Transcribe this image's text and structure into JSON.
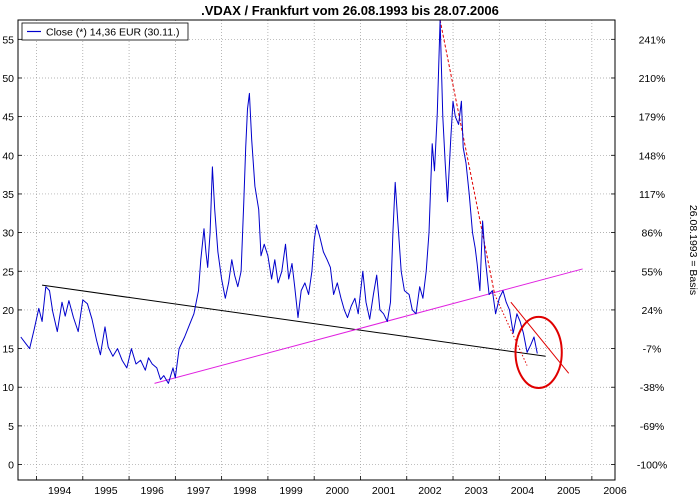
{
  "chart_data": {
    "type": "line",
    "title": ".VDAX / Frankfurt vom 26.08.1993 bis 28.07.2006",
    "legend": {
      "label": "Close (*) 14,36 EUR (30.11.)",
      "placement": "top-left"
    },
    "right_axis_label": "26.08.1993 = Basis",
    "x_ticks": [
      "1994",
      "1995",
      "1996",
      "1997",
      "1998",
      "1999",
      "2000",
      "2001",
      "2002",
      "2003",
      "2004",
      "2005",
      "2006"
    ],
    "y_ticks": [
      "0",
      "5",
      "10",
      "15",
      "20",
      "25",
      "30",
      "35",
      "40",
      "45",
      "50",
      "55"
    ],
    "right_ticks": [
      "-100%",
      "-69%",
      "-38%",
      "-7%",
      "24%",
      "55%",
      "86%",
      "117%",
      "148%",
      "179%",
      "210%",
      "241%"
    ],
    "xlim": [
      1993.6,
      2006.5
    ],
    "ylim": [
      -2.0,
      57.5
    ],
    "grid": "both-dotted",
    "colors": {
      "series": "#0000cc",
      "trend_black": "#000000",
      "trend_magenta": "#e020e0",
      "trend_red": "#e00000",
      "ellipse": "#e00000"
    },
    "series": [
      {
        "name": "Close (*) 14,36 EUR (30.11.)",
        "points": [
          [
            1993.66,
            16.5
          ],
          [
            1993.75,
            15.8
          ],
          [
            1993.85,
            15.0
          ],
          [
            1993.95,
            17.5
          ],
          [
            1994.05,
            20.2
          ],
          [
            1994.12,
            18.5
          ],
          [
            1994.2,
            23.0
          ],
          [
            1994.28,
            22.5
          ],
          [
            1994.35,
            19.8
          ],
          [
            1994.45,
            17.2
          ],
          [
            1994.55,
            21.0
          ],
          [
            1994.62,
            19.2
          ],
          [
            1994.7,
            21.2
          ],
          [
            1994.8,
            19.0
          ],
          [
            1994.9,
            17.2
          ],
          [
            1995.0,
            21.3
          ],
          [
            1995.1,
            20.8
          ],
          [
            1995.2,
            18.8
          ],
          [
            1995.3,
            16.0
          ],
          [
            1995.38,
            14.2
          ],
          [
            1995.48,
            17.8
          ],
          [
            1995.55,
            15.2
          ],
          [
            1995.65,
            14.0
          ],
          [
            1995.75,
            15.0
          ],
          [
            1995.85,
            13.5
          ],
          [
            1995.95,
            12.5
          ],
          [
            1996.05,
            15.0
          ],
          [
            1996.15,
            13.0
          ],
          [
            1996.25,
            13.5
          ],
          [
            1996.35,
            12.2
          ],
          [
            1996.42,
            13.8
          ],
          [
            1996.5,
            13.0
          ],
          [
            1996.6,
            12.5
          ],
          [
            1996.68,
            11.0
          ],
          [
            1996.75,
            11.5
          ],
          [
            1996.85,
            10.5
          ],
          [
            1996.95,
            12.5
          ],
          [
            1997.0,
            11.2
          ],
          [
            1997.08,
            15.0
          ],
          [
            1997.2,
            16.5
          ],
          [
            1997.3,
            18.0
          ],
          [
            1997.4,
            19.5
          ],
          [
            1997.5,
            22.5
          ],
          [
            1997.55,
            26.5
          ],
          [
            1997.62,
            30.5
          ],
          [
            1997.66,
            27.5
          ],
          [
            1997.7,
            25.5
          ],
          [
            1997.75,
            30.0
          ],
          [
            1997.8,
            38.5
          ],
          [
            1997.85,
            33.0
          ],
          [
            1997.92,
            27.5
          ],
          [
            1998.0,
            24.0
          ],
          [
            1998.08,
            21.5
          ],
          [
            1998.15,
            23.5
          ],
          [
            1998.22,
            26.5
          ],
          [
            1998.28,
            24.5
          ],
          [
            1998.35,
            23.0
          ],
          [
            1998.42,
            25.0
          ],
          [
            1998.48,
            34.0
          ],
          [
            1998.52,
            41.0
          ],
          [
            1998.56,
            46.0
          ],
          [
            1998.6,
            48.0
          ],
          [
            1998.65,
            42.0
          ],
          [
            1998.72,
            36.0
          ],
          [
            1998.8,
            33.0
          ],
          [
            1998.85,
            27.0
          ],
          [
            1998.92,
            28.5
          ],
          [
            1999.0,
            27.0
          ],
          [
            1999.08,
            24.0
          ],
          [
            1999.15,
            26.5
          ],
          [
            1999.22,
            23.5
          ],
          [
            1999.3,
            25.0
          ],
          [
            1999.38,
            28.5
          ],
          [
            1999.45,
            24.0
          ],
          [
            1999.52,
            26.0
          ],
          [
            1999.58,
            23.0
          ],
          [
            1999.65,
            19.0
          ],
          [
            1999.72,
            22.5
          ],
          [
            1999.8,
            23.5
          ],
          [
            1999.88,
            22.0
          ],
          [
            1999.95,
            25.0
          ],
          [
            2000.0,
            29.0
          ],
          [
            2000.05,
            31.0
          ],
          [
            2000.12,
            29.5
          ],
          [
            2000.2,
            27.5
          ],
          [
            2000.28,
            26.5
          ],
          [
            2000.35,
            25.5
          ],
          [
            2000.42,
            22.0
          ],
          [
            2000.5,
            23.5
          ],
          [
            2000.58,
            21.5
          ],
          [
            2000.65,
            20.0
          ],
          [
            2000.72,
            19.0
          ],
          [
            2000.8,
            20.5
          ],
          [
            2000.88,
            21.5
          ],
          [
            2000.95,
            19.5
          ],
          [
            2001.05,
            25.0
          ],
          [
            2001.12,
            21.0
          ],
          [
            2001.2,
            18.8
          ],
          [
            2001.28,
            22.0
          ],
          [
            2001.35,
            24.5
          ],
          [
            2001.42,
            20.0
          ],
          [
            2001.5,
            19.5
          ],
          [
            2001.58,
            18.5
          ],
          [
            2001.65,
            21.0
          ],
          [
            2001.7,
            30.0
          ],
          [
            2001.75,
            36.5
          ],
          [
            2001.8,
            32.0
          ],
          [
            2001.88,
            25.0
          ],
          [
            2001.95,
            22.5
          ],
          [
            2002.05,
            22.0
          ],
          [
            2002.12,
            20.0
          ],
          [
            2002.2,
            19.5
          ],
          [
            2002.28,
            23.0
          ],
          [
            2002.35,
            21.5
          ],
          [
            2002.42,
            25.0
          ],
          [
            2002.48,
            30.0
          ],
          [
            2002.55,
            41.5
          ],
          [
            2002.6,
            38.0
          ],
          [
            2002.66,
            45.5
          ],
          [
            2002.72,
            57.5
          ],
          [
            2002.78,
            45.0
          ],
          [
            2002.83,
            39.0
          ],
          [
            2002.88,
            34.0
          ],
          [
            2002.95,
            42.0
          ],
          [
            2003.0,
            47.0
          ],
          [
            2003.05,
            45.0
          ],
          [
            2003.12,
            44.0
          ],
          [
            2003.18,
            47.0
          ],
          [
            2003.22,
            41.0
          ],
          [
            2003.28,
            39.0
          ],
          [
            2003.35,
            35.0
          ],
          [
            2003.42,
            30.0
          ],
          [
            2003.48,
            28.0
          ],
          [
            2003.52,
            26.0
          ],
          [
            2003.58,
            22.5
          ],
          [
            2003.64,
            31.5
          ],
          [
            2003.7,
            26.5
          ],
          [
            2003.78,
            22.0
          ],
          [
            2003.85,
            22.5
          ],
          [
            2003.92,
            19.5
          ],
          [
            2004.0,
            21.5
          ],
          [
            2004.08,
            22.5
          ],
          [
            2004.15,
            21.0
          ],
          [
            2004.22,
            20.0
          ],
          [
            2004.3,
            17.0
          ],
          [
            2004.38,
            19.5
          ],
          [
            2004.45,
            18.5
          ],
          [
            2004.52,
            17.0
          ],
          [
            2004.6,
            14.5
          ],
          [
            2004.68,
            15.5
          ],
          [
            2004.75,
            16.5
          ],
          [
            2004.82,
            14.36
          ]
        ]
      }
    ],
    "trendlines": [
      {
        "color": "black",
        "from": [
          1994.12,
          23.2
        ],
        "to": [
          2005.0,
          14.0
        ]
      },
      {
        "color": "magenta",
        "from": [
          1996.55,
          10.5
        ],
        "to": [
          2005.8,
          25.3
        ]
      },
      {
        "color": "red",
        "style": "dashed",
        "from": [
          2002.72,
          57.5
        ],
        "to": [
          2003.9,
          22.0
        ]
      },
      {
        "color": "red",
        "style": "dotted",
        "from": [
          2003.9,
          22.0
        ],
        "to": [
          2004.6,
          12.8
        ]
      },
      {
        "color": "red",
        "style": "solid",
        "from": [
          2004.25,
          21.0
        ],
        "to": [
          2005.5,
          11.8
        ]
      }
    ],
    "highlight_ellipse": {
      "color": "red",
      "center": [
        2004.85,
        14.5
      ],
      "radius_x": 0.5,
      "radius_y": 4.6
    }
  }
}
